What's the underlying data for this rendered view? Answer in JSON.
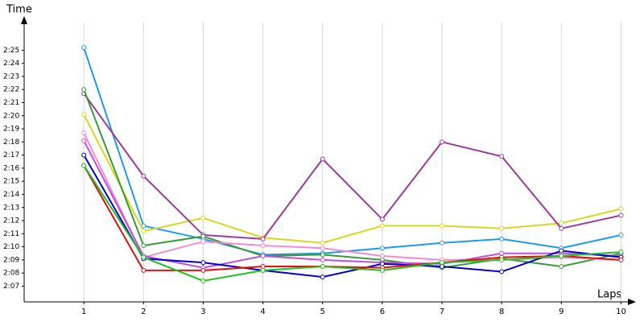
{
  "chart_data": {
    "type": "line",
    "x_label": "Laps",
    "y_label": "Time",
    "x": [
      1,
      2,
      3,
      4,
      5,
      6,
      7,
      8,
      9,
      10
    ],
    "xlim": [
      0,
      10.25
    ],
    "xticks": [
      1,
      2,
      3,
      4,
      5,
      6,
      7,
      8,
      9,
      10
    ],
    "ylim": [
      125.8,
      147.6
    ],
    "yticks": [
      {
        "value": 127,
        "label": "2:07"
      },
      {
        "value": 128,
        "label": "2:08"
      },
      {
        "value": 129,
        "label": "2:09"
      },
      {
        "value": 130,
        "label": "2:10"
      },
      {
        "value": 131,
        "label": "2:11"
      },
      {
        "value": 132,
        "label": "2:12"
      },
      {
        "value": 133,
        "label": "2:13"
      },
      {
        "value": 134,
        "label": "2:14"
      },
      {
        "value": 135,
        "label": "2:15"
      },
      {
        "value": 136,
        "label": "2:16"
      },
      {
        "value": 137,
        "label": "2:17"
      },
      {
        "value": 138,
        "label": "2:18"
      },
      {
        "value": 139,
        "label": "2:19"
      },
      {
        "value": 140,
        "label": "2:20"
      },
      {
        "value": 141,
        "label": "2:21"
      },
      {
        "value": 142,
        "label": "2:22"
      },
      {
        "value": 143,
        "label": "2:23"
      },
      {
        "value": 144,
        "label": "2:24"
      },
      {
        "value": 145,
        "label": "2:25"
      }
    ],
    "grid": "x",
    "series": [
      {
        "color": "#1e9be8",
        "values": [
          145.2,
          131.6,
          130.6,
          129.4,
          129.5,
          129.9,
          130.3,
          130.6,
          129.9,
          130.9
        ]
      },
      {
        "color": "#d8d820",
        "values": [
          140.1,
          131.2,
          132.2,
          130.7,
          130.3,
          131.6,
          131.6,
          131.4,
          131.8,
          132.9
        ]
      },
      {
        "color": "#9b3a9b",
        "values": [
          141.7,
          135.4,
          130.9,
          130.6,
          136.7,
          132.1,
          138.0,
          136.9,
          131.4,
          132.4
        ]
      },
      {
        "color": "#3a9b3a",
        "values": [
          142.0,
          130.1,
          130.8,
          129.3,
          129.4,
          129.0,
          128.4,
          129.1,
          128.5,
          129.5
        ]
      },
      {
        "color": "#f08cd0",
        "values": [
          138.7,
          129.2,
          130.4,
          130.1,
          129.9,
          129.3,
          129.0,
          129.0,
          129.2,
          129.0
        ]
      },
      {
        "color": "#c050d8",
        "values": [
          138.1,
          129.3,
          128.4,
          129.3,
          129.0,
          128.8,
          128.7,
          129.5,
          129.5,
          129.3
        ]
      },
      {
        "color": "#0000d0",
        "values": [
          137.0,
          129.1,
          128.8,
          128.2,
          127.7,
          128.7,
          128.5,
          128.1,
          129.7,
          129.2
        ]
      },
      {
        "color": "#e01010",
        "values": [
          136.2,
          128.2,
          128.2,
          128.5,
          128.5,
          128.4,
          128.8,
          129.2,
          129.3,
          129.0
        ]
      },
      {
        "color": "#20c020",
        "values": [
          136.2,
          129.2,
          127.4,
          128.2,
          128.5,
          128.2,
          128.8,
          129.0,
          129.3,
          129.6
        ]
      }
    ]
  }
}
